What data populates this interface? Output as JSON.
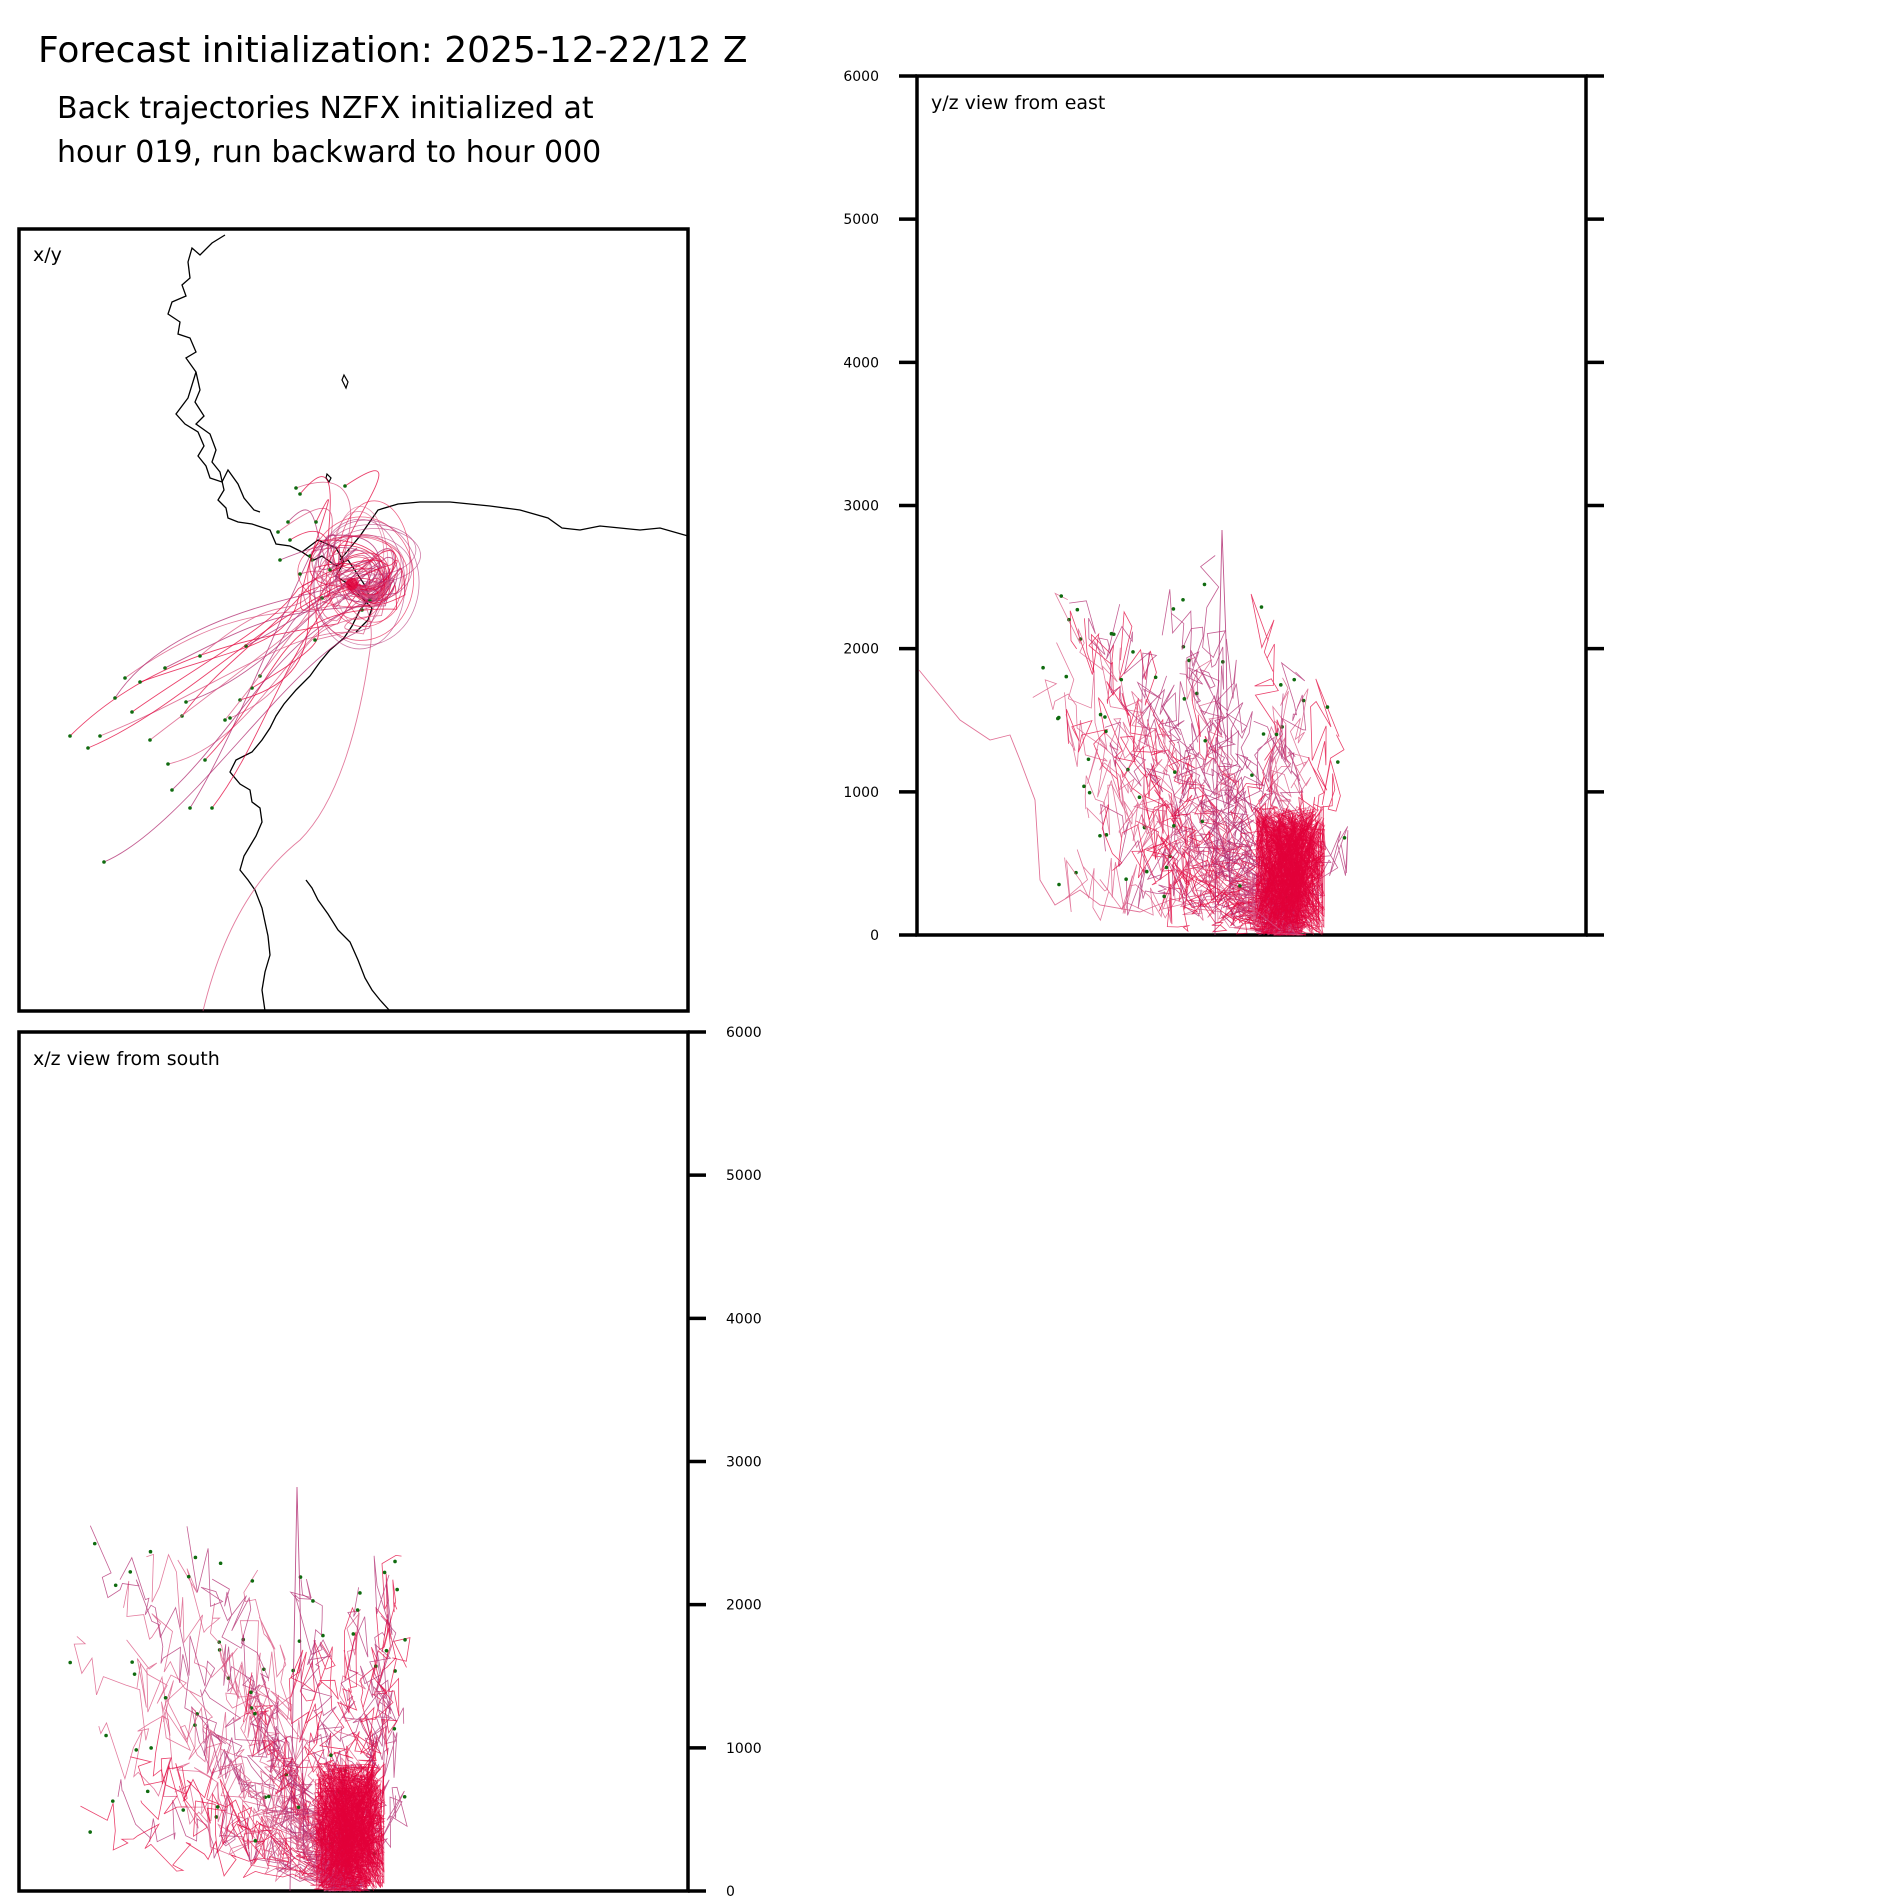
{
  "figure": {
    "title": "Forecast initialization: 2025-12-22/12 Z",
    "subtitle_line1": "Back trajectories NZFX initialized at",
    "subtitle_line2": "hour 019, run backward to hour 000"
  },
  "colors": {
    "coastline": "#000000",
    "trajectory_a": "#e3003a",
    "trajectory_b": "#b0286e",
    "trajectory_c": "#d9507e",
    "endpoint": "#0f6b0f"
  },
  "chart_data": [
    {
      "type": "line",
      "panel": "x/y",
      "title": "x/y",
      "description_kind": "map",
      "grid": false
    },
    {
      "type": "line",
      "panel": "y/z",
      "title": "y/z view from east",
      "ylim": [
        0,
        6000
      ],
      "yticks": [
        0,
        1000,
        2000,
        3000,
        4000,
        5000,
        6000
      ],
      "ytick_labels": [
        "0",
        "1000",
        "2000",
        "3000",
        "4000",
        "5000",
        "6000"
      ],
      "ytick_side": "left",
      "grid": false
    },
    {
      "type": "line",
      "panel": "x/z",
      "title": "x/z view from south",
      "ylim": [
        0,
        6000
      ],
      "yticks": [
        0,
        1000,
        2000,
        3000,
        4000,
        5000,
        6000
      ],
      "ytick_labels": [
        "0",
        "1000",
        "2000",
        "3000",
        "4000",
        "5000",
        "6000"
      ],
      "ytick_side": "right",
      "grid": false
    }
  ]
}
